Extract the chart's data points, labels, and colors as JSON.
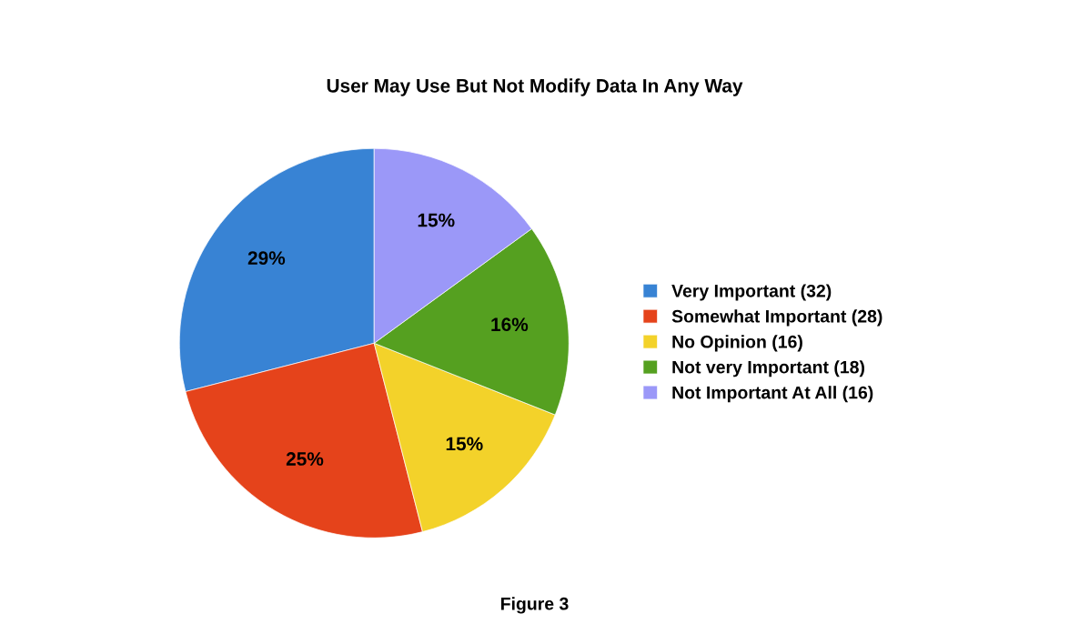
{
  "chart_data": {
    "type": "pie",
    "title": "User May Use But Not Modify Data In Any Way",
    "categories": [
      "Very Important (32)",
      "Somewhat Important (28)",
      "No Opinion (16)",
      "Not very Important (18)",
      "Not Important At All (16)"
    ],
    "values": [
      29,
      25,
      15,
      16,
      15
    ],
    "value_labels": [
      "29%",
      "25%",
      "15%",
      "16%",
      "15%"
    ],
    "colors": [
      "#3883d4",
      "#e5431b",
      "#f3d22a",
      "#55a020",
      "#9b98f8"
    ],
    "legend": "right",
    "annotations": [
      "Figure 3"
    ]
  }
}
